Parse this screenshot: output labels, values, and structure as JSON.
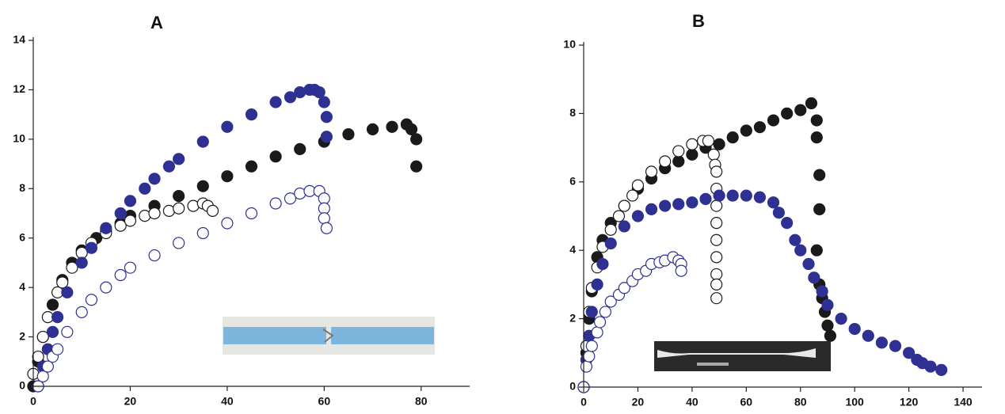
{
  "chart_data": [
    {
      "type": "scatter",
      "title": "A",
      "xlim": [
        0,
        90
      ],
      "xticks": [
        0,
        20,
        40,
        60,
        80
      ],
      "ylim": [
        0,
        14
      ],
      "yticks": [
        0,
        2,
        4,
        6,
        8,
        10,
        12,
        14
      ],
      "series": [
        {
          "color": "#1a1a1a",
          "marker": "filled",
          "x": [
            0,
            1,
            2,
            4,
            6,
            8,
            10,
            13,
            15,
            18,
            20,
            25,
            30,
            35,
            40,
            45,
            50,
            55,
            60,
            65,
            70,
            74,
            77,
            78,
            79,
            79
          ],
          "values": [
            0,
            1,
            2,
            3.3,
            4.3,
            5,
            5.5,
            6,
            6.3,
            6.6,
            6.9,
            7.3,
            7.7,
            8.1,
            8.5,
            8.9,
            9.3,
            9.6,
            9.9,
            10.2,
            10.4,
            10.5,
            10.6,
            10.4,
            10,
            8.9
          ]
        },
        {
          "color": "#1a1a1a",
          "marker": "open",
          "x": [
            0,
            1,
            2,
            3,
            5,
            6,
            8,
            10,
            12,
            15,
            18,
            20,
            23,
            25,
            28,
            30,
            33,
            35,
            36,
            37
          ],
          "values": [
            0.5,
            1.2,
            2,
            2.8,
            3.8,
            4.2,
            4.8,
            5.4,
            5.8,
            6.2,
            6.5,
            6.7,
            6.9,
            7,
            7.1,
            7.2,
            7.3,
            7.4,
            7.3,
            7.1
          ]
        },
        {
          "color": "#2e3192",
          "marker": "filled",
          "x": [
            1,
            2,
            3,
            4,
            5,
            7,
            10,
            12,
            15,
            18,
            20,
            23,
            25,
            28,
            30,
            35,
            40,
            45,
            50,
            53,
            55,
            57,
            58,
            59,
            60,
            60.5,
            60.5
          ],
          "values": [
            0,
            0.8,
            1.5,
            2.2,
            2.8,
            3.8,
            5,
            5.6,
            6.4,
            7,
            7.5,
            8,
            8.4,
            8.9,
            9.2,
            9.9,
            10.5,
            11,
            11.5,
            11.7,
            11.9,
            12,
            12,
            11.9,
            11.5,
            10.9,
            10.1
          ]
        },
        {
          "color": "#2e3192",
          "marker": "open",
          "x": [
            1,
            2,
            3,
            4,
            5,
            7,
            10,
            12,
            15,
            18,
            20,
            25,
            30,
            35,
            40,
            45,
            50,
            53,
            55,
            57,
            59,
            60,
            60,
            60,
            60.5
          ],
          "values": [
            0,
            0.4,
            0.8,
            1.2,
            1.5,
            2.2,
            3,
            3.5,
            4,
            4.5,
            4.8,
            5.3,
            5.8,
            6.2,
            6.6,
            7,
            7.4,
            7.6,
            7.8,
            7.9,
            7.9,
            7.6,
            7.2,
            6.8,
            6.4
          ]
        }
      ]
    },
    {
      "type": "scatter",
      "title": "B",
      "xlim": [
        0,
        147
      ],
      "xticks": [
        0,
        20,
        40,
        60,
        80,
        100,
        120,
        140
      ],
      "ylim": [
        0,
        10
      ],
      "yticks": [
        0,
        2,
        4,
        6,
        8,
        10
      ],
      "series": [
        {
          "color": "#1a1a1a",
          "marker": "filled",
          "x": [
            0,
            1,
            2,
            3,
            5,
            7,
            10,
            15,
            20,
            25,
            30,
            35,
            40,
            45,
            50,
            55,
            60,
            65,
            70,
            75,
            80,
            84,
            86,
            86,
            87,
            87,
            86,
            87,
            88,
            89,
            90,
            91
          ],
          "values": [
            0,
            1,
            2,
            2.8,
            3.8,
            4.3,
            4.8,
            5.3,
            5.8,
            6.1,
            6.4,
            6.6,
            6.8,
            7,
            7.1,
            7.3,
            7.5,
            7.6,
            7.8,
            8,
            8.1,
            8.3,
            7.8,
            7.3,
            6.2,
            5.2,
            4,
            3,
            2.6,
            2.2,
            1.8,
            1.5
          ]
        },
        {
          "color": "#1a1a1a",
          "marker": "open",
          "x": [
            0,
            1,
            2,
            3,
            5,
            7,
            10,
            13,
            15,
            18,
            20,
            25,
            30,
            35,
            40,
            44,
            46,
            48,
            48.5,
            49,
            49,
            49,
            49,
            49,
            49,
            49,
            49,
            49
          ],
          "values": [
            0,
            1.2,
            2.2,
            2.9,
            3.5,
            4.1,
            4.6,
            5,
            5.3,
            5.6,
            5.9,
            6.3,
            6.6,
            6.9,
            7.1,
            7.2,
            7.2,
            6.8,
            6.5,
            6.3,
            5.8,
            5.3,
            4.8,
            4.3,
            3.8,
            3.3,
            3,
            2.6
          ]
        },
        {
          "color": "#2e3192",
          "marker": "filled",
          "x": [
            0,
            1,
            2,
            3,
            5,
            7,
            10,
            15,
            20,
            25,
            30,
            35,
            40,
            45,
            50,
            55,
            60,
            65,
            70,
            72,
            75,
            78,
            80,
            83,
            85,
            88,
            90,
            95,
            100,
            105,
            110,
            115,
            120,
            123,
            125,
            128,
            132
          ],
          "values": [
            0,
            0.8,
            1.5,
            2.2,
            3,
            3.6,
            4.2,
            4.7,
            5,
            5.2,
            5.3,
            5.35,
            5.4,
            5.5,
            5.6,
            5.6,
            5.6,
            5.55,
            5.4,
            5.1,
            4.8,
            4.3,
            4,
            3.6,
            3.2,
            2.8,
            2.4,
            2,
            1.7,
            1.5,
            1.3,
            1.2,
            1,
            0.8,
            0.7,
            0.6,
            0.5
          ]
        },
        {
          "color": "#2e3192",
          "marker": "open",
          "x": [
            0,
            1,
            2,
            3,
            5,
            6,
            8,
            10,
            13,
            15,
            18,
            20,
            23,
            25,
            28,
            30,
            33,
            35,
            36,
            36
          ],
          "values": [
            0,
            0.6,
            0.9,
            1.2,
            1.6,
            1.9,
            2.2,
            2.5,
            2.7,
            2.9,
            3.1,
            3.3,
            3.4,
            3.6,
            3.65,
            3.7,
            3.8,
            3.7,
            3.6,
            3.4
          ]
        }
      ]
    }
  ]
}
